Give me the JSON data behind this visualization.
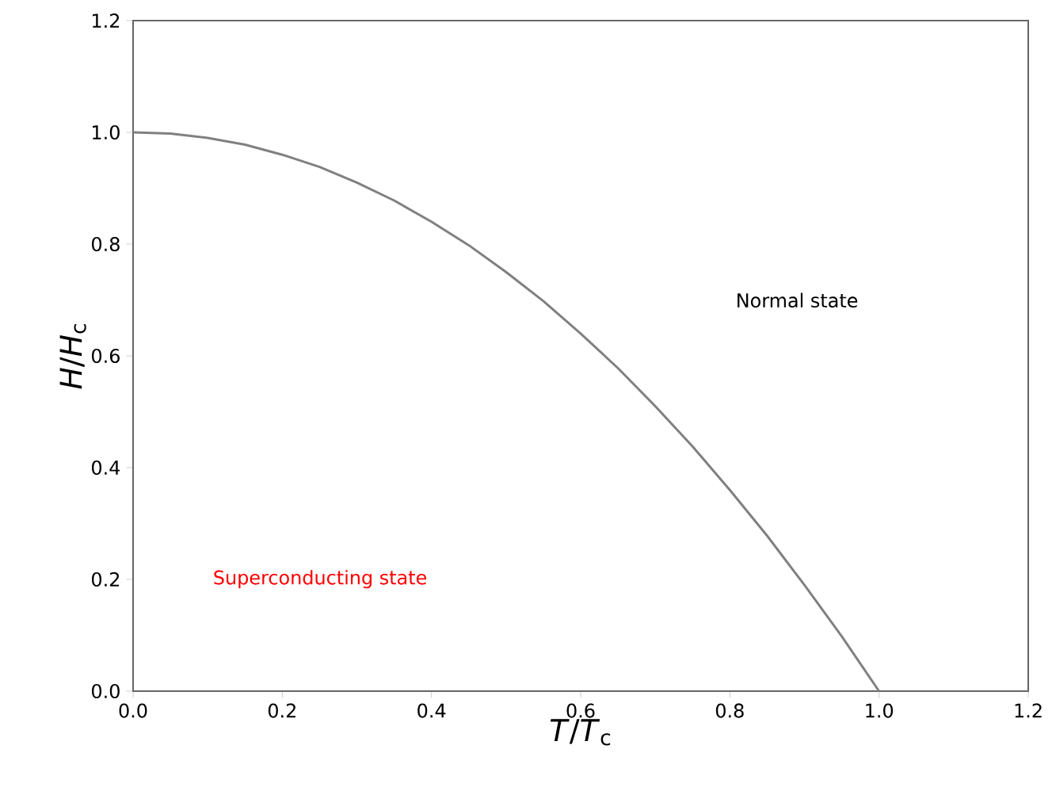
{
  "chart_data": {
    "type": "line",
    "xlabel": "*T*/*T*$_{c}$",
    "ylabel": "*H*/*H*$_{c}$",
    "x": [
      0,
      0.05,
      0.1,
      0.15,
      0.2,
      0.25,
      0.3,
      0.35,
      0.4,
      0.45,
      0.5,
      0.55,
      0.6,
      0.65,
      0.7,
      0.75,
      0.8,
      0.85,
      0.9,
      0.95,
      1.0
    ],
    "series": [
      {
        "color": "#808080",
        "values": [
          1.0,
          0.998,
          0.99,
          0.978,
          0.96,
          0.938,
          0.91,
          0.878,
          0.84,
          0.798,
          0.75,
          0.698,
          0.64,
          0.578,
          0.51,
          0.438,
          0.36,
          0.278,
          0.19,
          0.098,
          0.0
        ]
      }
    ],
    "xlim": [
      0,
      1.2
    ],
    "ylim": [
      0,
      1.2
    ],
    "xticks": [
      {
        "value": 0,
        "label": "0.0"
      },
      0.2,
      0.4,
      0.6,
      0.8,
      {
        "value": 1,
        "label": "1.0"
      },
      1.2
    ],
    "yticks": [
      {
        "value": 0,
        "label": "0.0"
      },
      0.2,
      0.4,
      0.6,
      0.8,
      {
        "value": 1,
        "label": "1.0"
      },
      1.2
    ],
    "annotations": [
      "Normal state",
      "Superconducting state"
    ],
    "grid": false,
    "marker": "none",
    "line_style": "solid"
  }
}
